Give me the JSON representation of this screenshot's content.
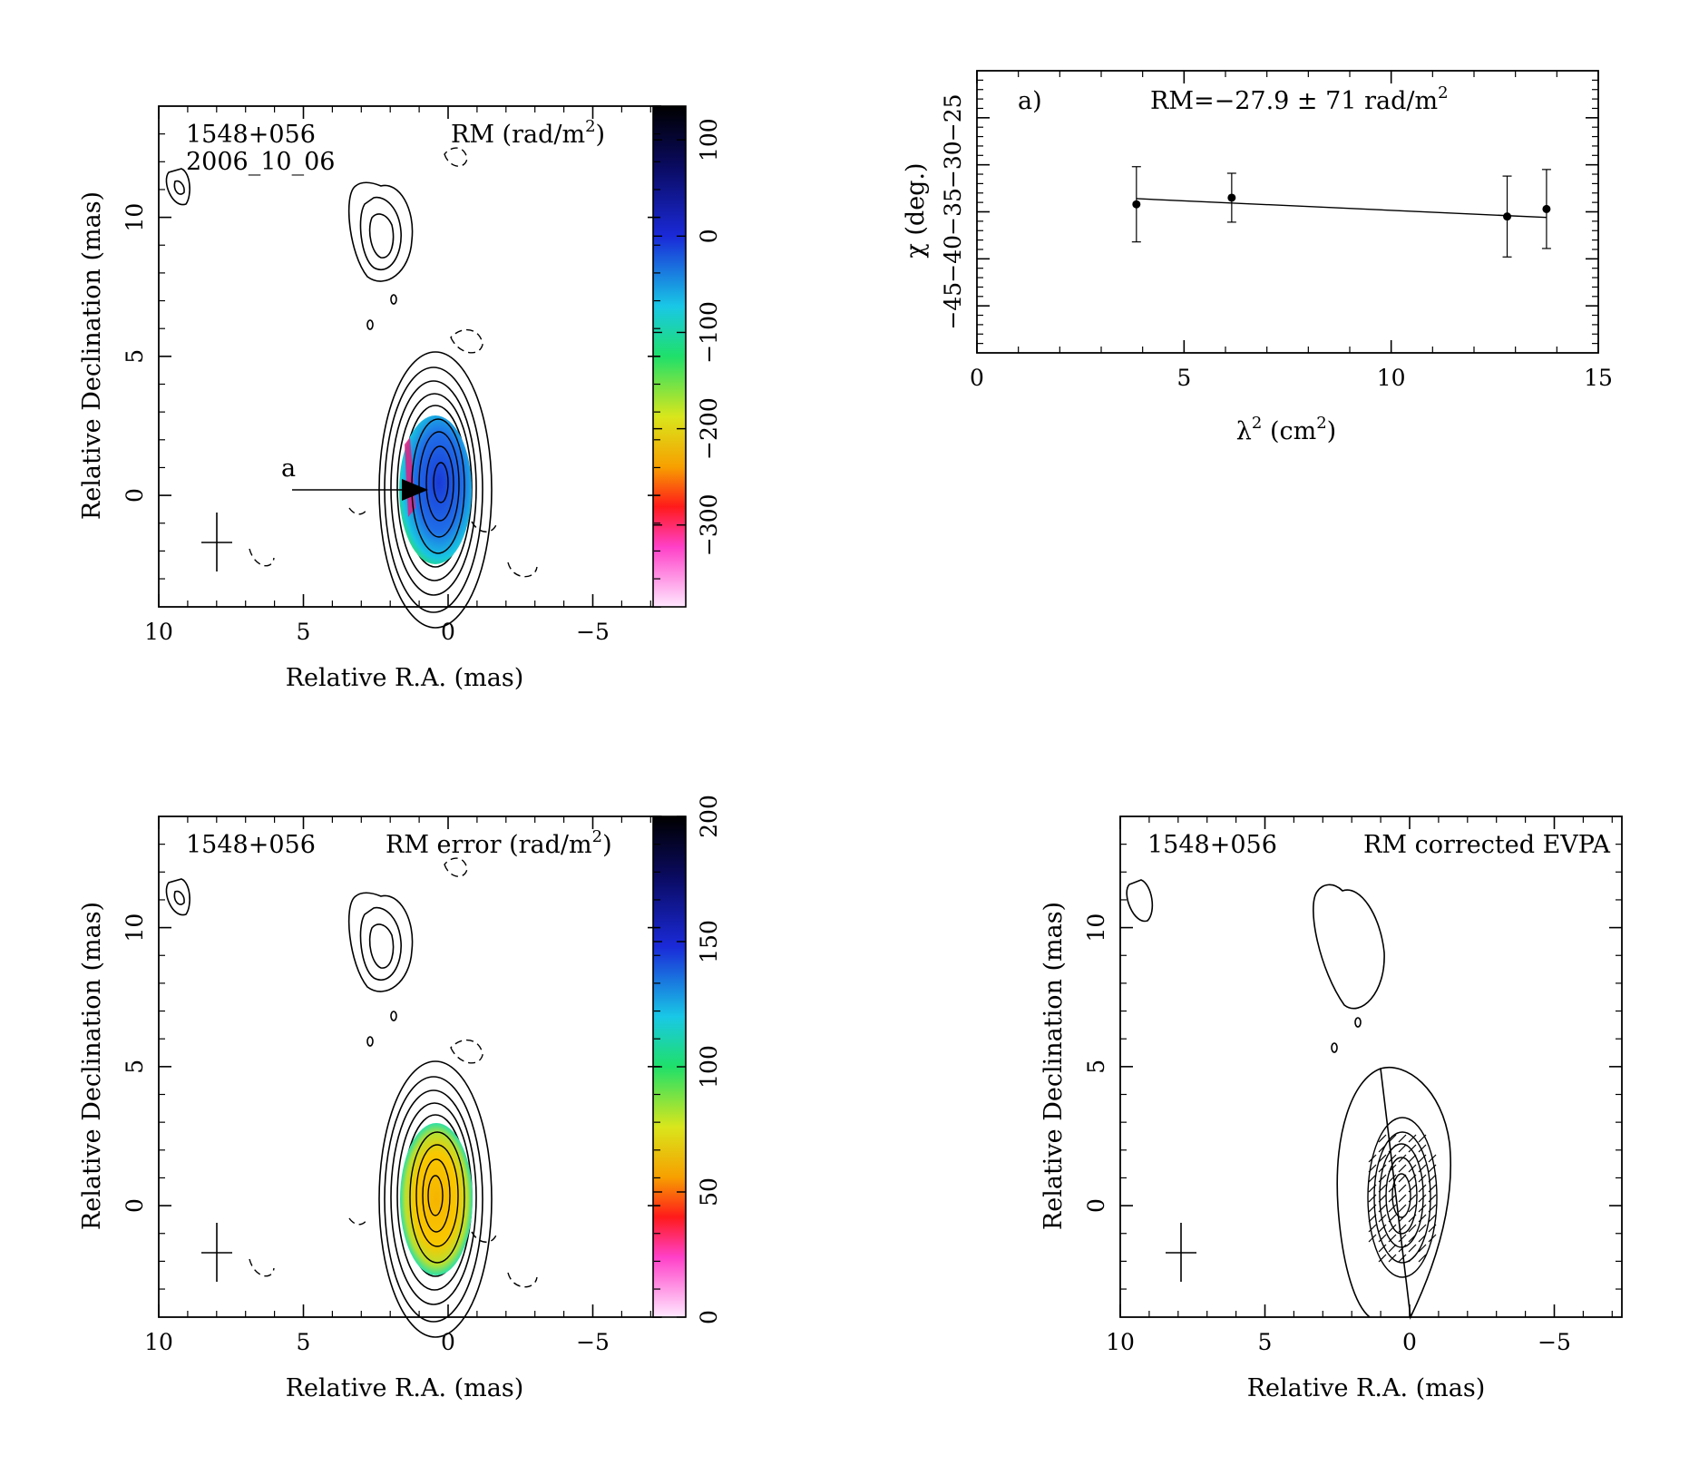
{
  "panel_rm": {
    "source": "1548+056",
    "epoch": "2006_10_06",
    "map_label_main": "RM (rad/m",
    "map_label_sup": "2",
    "map_label_close": ")",
    "marker_label": "a",
    "xlabel": "Relative R.A. (mas)",
    "ylabel": "Relative Declination (mas)",
    "x_ticks": [
      "10",
      "5",
      "0",
      "−5"
    ],
    "y_ticks": [
      "0",
      "5",
      "10"
    ],
    "colorbar_ticks": [
      "100",
      "0",
      "−100",
      "−200",
      "−300"
    ]
  },
  "panel_err": {
    "source": "1548+056",
    "map_label_main": "RM error (rad/m",
    "map_label_sup": "2",
    "map_label_close": ")",
    "xlabel": "Relative R.A. (mas)",
    "ylabel": "Relative Declination (mas)",
    "x_ticks": [
      "10",
      "5",
      "0",
      "−5"
    ],
    "y_ticks": [
      "0",
      "5",
      "10"
    ],
    "colorbar_ticks": [
      "200",
      "150",
      "100",
      "50",
      "0"
    ]
  },
  "panel_evpa": {
    "source": "1548+056",
    "map_label": "RM corrected EVPA",
    "xlabel": "Relative R.A. (mas)",
    "ylabel": "Relative Declination (mas)",
    "x_ticks": [
      "10",
      "5",
      "0",
      "−5"
    ],
    "y_ticks": [
      "0",
      "5",
      "10"
    ]
  },
  "chart_data": [
    {
      "type": "scatter",
      "panel_tag": "a)",
      "fit_text_main": "RM=−27.9 ± 71 rad/m",
      "fit_text_sup": "2",
      "xlabel_main": "λ",
      "xlabel_sup": "2",
      "xlabel_rest": " (cm",
      "xlabel_sup2": "2",
      "xlabel_close": ")",
      "ylabel": "χ (deg.)",
      "xlim": [
        0,
        15
      ],
      "ylim": [
        -50,
        -20
      ],
      "x_ticks": [
        "0",
        "5",
        "10",
        "15"
      ],
      "y_ticks": [
        "−45",
        "−40",
        "−35",
        "−30",
        "−25"
      ],
      "points": [
        {
          "x": 3.85,
          "y": -34.2,
          "err": 4.0
        },
        {
          "x": 6.15,
          "y": -33.5,
          "err": 2.6
        },
        {
          "x": 12.8,
          "y": -35.5,
          "err": 4.3
        },
        {
          "x": 13.75,
          "y": -34.7,
          "err": 4.2
        }
      ],
      "fit": {
        "x": [
          3.85,
          13.75
        ],
        "y": [
          -33.6,
          -35.6
        ]
      }
    }
  ]
}
